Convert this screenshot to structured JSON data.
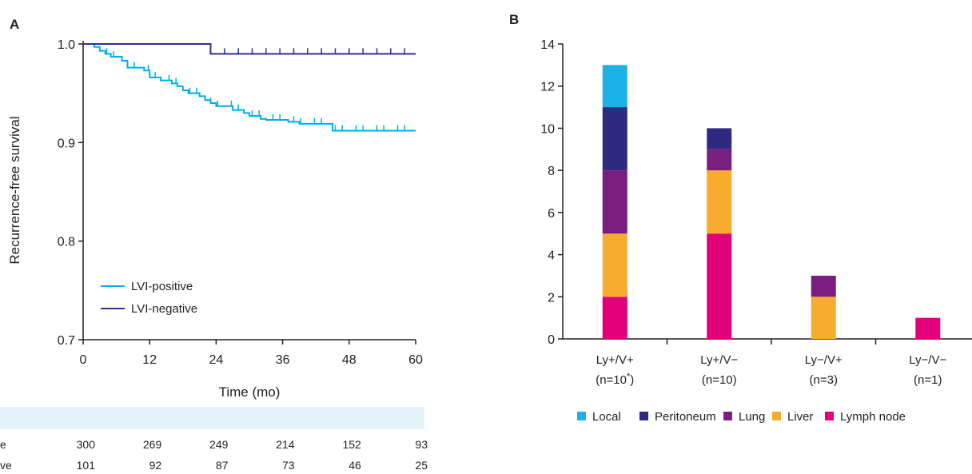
{
  "panels": {
    "a_letter": "A",
    "b_letter": "B"
  },
  "chart_data": [
    {
      "type": "line",
      "title": "",
      "xlabel": "Time (mo)",
      "ylabel": "Recurrence-free survival",
      "xlim": [
        0,
        60
      ],
      "ylim": [
        0.7,
        1.0
      ],
      "xticks": [
        "0",
        "12",
        "24",
        "36",
        "48",
        "60"
      ],
      "yticks": [
        "0.7",
        "0.8",
        "0.9",
        "1.0"
      ],
      "legend_position": "lower-left",
      "series": [
        {
          "name": "LVI-positive",
          "color": "#00aeef",
          "x": [
            0,
            2,
            3,
            4,
            5,
            7,
            8,
            11,
            12,
            14,
            16,
            17,
            18,
            19,
            21,
            22,
            23,
            24,
            27,
            29,
            30,
            32,
            33,
            37,
            39,
            45,
            60
          ],
          "y": [
            1.0,
            0.997,
            0.993,
            0.99,
            0.987,
            0.983,
            0.976,
            0.973,
            0.966,
            0.963,
            0.96,
            0.957,
            0.953,
            0.95,
            0.947,
            0.943,
            0.94,
            0.937,
            0.933,
            0.93,
            0.927,
            0.924,
            0.923,
            0.921,
            0.919,
            0.912,
            0.912
          ]
        },
        {
          "name": "LVI-negative",
          "color": "#2e3192",
          "x": [
            0,
            23,
            60
          ],
          "y": [
            1.0,
            0.99,
            0.99
          ]
        }
      ]
    },
    {
      "type": "bar",
      "stacked": true,
      "title": "",
      "categories": [
        "Ly+/V+",
        "Ly+/V−",
        "Ly−/V+",
        "Ly−/V−"
      ],
      "category_n": [
        "(n=10",
        "(n=10)",
        "(n=3)",
        "(n=1)"
      ],
      "first_n_suffix": ")",
      "first_n_star": "*",
      "ylim": [
        0,
        14
      ],
      "yticks": [
        "0",
        "2",
        "4",
        "6",
        "8",
        "10",
        "12",
        "14"
      ],
      "legend_position": "bottom",
      "series": [
        {
          "name": "Lymph node",
          "color": "#e2007a",
          "values": [
            2,
            5,
            0,
            1
          ]
        },
        {
          "name": "Liver",
          "color": "#f8ac2f",
          "values": [
            3,
            3,
            2,
            0
          ]
        },
        {
          "name": "Lung",
          "color": "#7a1e7f",
          "values": [
            3,
            1,
            1,
            0
          ]
        },
        {
          "name": "Peritoneum",
          "color": "#2e2b80",
          "values": [
            3,
            1,
            0,
            0
          ]
        },
        {
          "name": "Local",
          "color": "#1eb1e7",
          "values": [
            2,
            0,
            0,
            0
          ]
        }
      ]
    }
  ],
  "risk_table": {
    "header_color": "#e4f4fa",
    "rows": [
      {
        "label_fragment": "e",
        "values": [
          "300",
          "269",
          "249",
          "214",
          "152",
          "93"
        ]
      },
      {
        "label_fragment": "ve",
        "values": [
          "101",
          "92",
          "87",
          "73",
          "46",
          "25"
        ]
      }
    ]
  }
}
